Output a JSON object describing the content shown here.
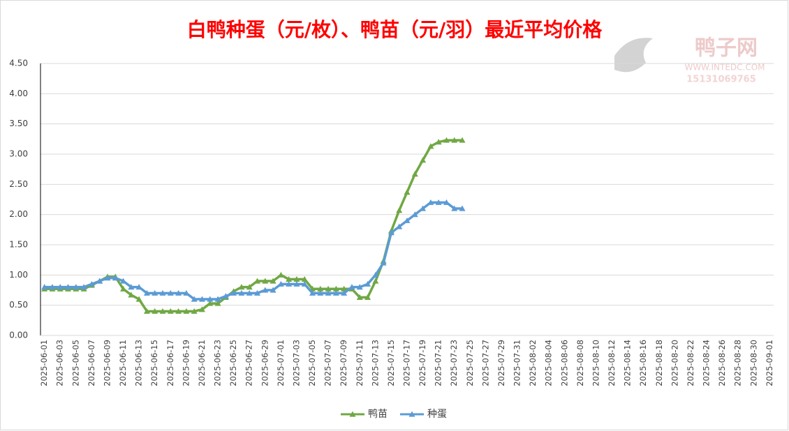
{
  "chart_data": {
    "type": "line",
    "title": "白鸭种蛋（元/枚）、鸭苗（元/羽）最近平均价格",
    "annotations": [
      "鸭子网",
      "WWW.INTEDC.COM",
      "15131069765"
    ],
    "categories": [
      "2025-06-01",
      null,
      "2025-06-03",
      null,
      "2025-06-05",
      null,
      "2025-06-07",
      null,
      "2025-06-09",
      null,
      "2025-06-11",
      null,
      "2025-06-13",
      null,
      "2025-06-15",
      null,
      "2025-06-17",
      null,
      "2025-06-19",
      null,
      "2025-06-21",
      null,
      "2025-06-23",
      null,
      "2025-06-25",
      null,
      "2025-06-27",
      null,
      "2025-06-29",
      null,
      "2025-07-01",
      null,
      "2025-07-03",
      null,
      "2025-07-05",
      null,
      "2025-07-07",
      null,
      "2025-07-09",
      null,
      "2025-07-11",
      null,
      "2025-07-13",
      null,
      "2025-07-15",
      null,
      "2025-07-17",
      null,
      "2025-07-19",
      null,
      "2025-07-21",
      null,
      "2025-07-23",
      null,
      "2025-07-25",
      null,
      "2025-07-27",
      null,
      "2025-07-29",
      null,
      "2025-07-31",
      null,
      "2025-08-02",
      null,
      "2025-08-04",
      null,
      "2025-08-06",
      null,
      "2025-08-08",
      null,
      "2025-08-10",
      null,
      "2025-08-12",
      null,
      "2025-08-14",
      null,
      "2025-08-16",
      null,
      "2025-08-18",
      null,
      "2025-08-20",
      null,
      "2025-08-22",
      null,
      "2025-08-24",
      null,
      "2025-08-26",
      null,
      "2025-08-28",
      null,
      "2025-08-30",
      null,
      "2025-09-01"
    ],
    "series": [
      {
        "name": "鸭苗",
        "color": "#70a844",
        "values": [
          0.77,
          0.77,
          0.77,
          0.77,
          0.77,
          0.77,
          0.83,
          0.9,
          0.97,
          0.97,
          0.77,
          0.67,
          0.6,
          0.4,
          0.4,
          0.4,
          0.4,
          0.4,
          0.4,
          0.4,
          0.43,
          0.53,
          0.53,
          0.63,
          0.73,
          0.8,
          0.8,
          0.9,
          0.9,
          0.9,
          1.0,
          0.93,
          0.93,
          0.93,
          0.77,
          0.77,
          0.77,
          0.77,
          0.77,
          0.77,
          0.63,
          0.63,
          0.9,
          1.23,
          1.73,
          2.07,
          2.37,
          2.67,
          2.9,
          3.13,
          3.2,
          3.23,
          3.23,
          3.23,
          null,
          null,
          null,
          null,
          null,
          null,
          null,
          null,
          null,
          null,
          null,
          null,
          null,
          null,
          null,
          null,
          null,
          null,
          null,
          null,
          null,
          null,
          null,
          null,
          null,
          null,
          null,
          null,
          null,
          null,
          null,
          null,
          null,
          null,
          null,
          null,
          null,
          null,
          null
        ]
      },
      {
        "name": "种蛋",
        "color": "#5b9bd5",
        "values": [
          0.8,
          0.8,
          0.8,
          0.8,
          0.8,
          0.8,
          0.85,
          0.9,
          0.95,
          0.95,
          0.9,
          0.8,
          0.8,
          0.7,
          0.7,
          0.7,
          0.7,
          0.7,
          0.7,
          0.6,
          0.6,
          0.6,
          0.6,
          0.65,
          0.7,
          0.7,
          0.7,
          0.7,
          0.75,
          0.75,
          0.85,
          0.85,
          0.85,
          0.85,
          0.7,
          0.7,
          0.7,
          0.7,
          0.7,
          0.8,
          0.8,
          0.85,
          1.0,
          1.2,
          1.7,
          1.8,
          1.9,
          2.0,
          2.1,
          2.2,
          2.2,
          2.2,
          2.1,
          2.1,
          null,
          null,
          null,
          null,
          null,
          null,
          null,
          null,
          null,
          null,
          null,
          null,
          null,
          null,
          null,
          null,
          null,
          null,
          null,
          null,
          null,
          null,
          null,
          null,
          null,
          null,
          null,
          null,
          null,
          null,
          null,
          null,
          null,
          null,
          null,
          null,
          null,
          null,
          null
        ]
      }
    ],
    "ylim": [
      0,
      4.5
    ],
    "yticks": [
      {
        "value": 0,
        "label": "0.00"
      },
      {
        "value": 0.5,
        "label": "0.50"
      },
      {
        "value": 1,
        "label": "1.00"
      },
      {
        "value": 1.5,
        "label": "1.50"
      },
      {
        "value": 2,
        "label": "2.00"
      },
      {
        "value": 2.5,
        "label": "2.50"
      },
      {
        "value": 3,
        "label": "3.00"
      },
      {
        "value": 3.5,
        "label": "3.50"
      },
      {
        "value": 4,
        "label": "4.00"
      },
      {
        "value": 4.5,
        "label": "4.50"
      }
    ],
    "grid": true,
    "legend": "bottom"
  }
}
